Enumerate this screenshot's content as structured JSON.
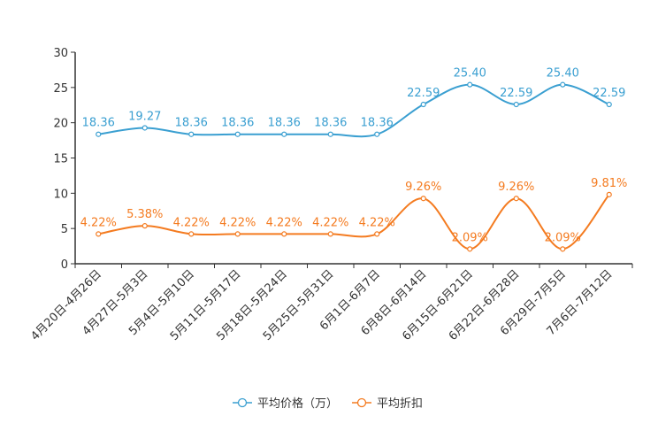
{
  "chart_data": {
    "type": "line",
    "title": "",
    "xlabel": "",
    "ylabel": "",
    "ylim": [
      0,
      30
    ],
    "yticks": [
      0,
      5,
      10,
      15,
      20,
      25,
      30
    ],
    "categories": [
      "4月20日-4月26日",
      "4月27日-5月3日",
      "5月4日-5月10日",
      "5月11日-5月17日",
      "5月18日-5月24日",
      "5月25日-5月31日",
      "6月1日-6月7日",
      "6月8日-6月14日",
      "6月15日-6月21日",
      "6月22日-6月28日",
      "6月29日-7月5日",
      "7月6日-7月12日"
    ],
    "series": [
      {
        "name": "平均价格（万）",
        "color": "#3a9fd1",
        "values": [
          18.36,
          19.27,
          18.36,
          18.36,
          18.36,
          18.36,
          18.36,
          22.59,
          25.4,
          22.59,
          25.4,
          22.59
        ],
        "labels": [
          "18.36",
          "19.27",
          "18.36",
          "18.36",
          "18.36",
          "18.36",
          "18.36",
          "22.59",
          "25.40",
          "22.59",
          "25.40",
          "22.59"
        ]
      },
      {
        "name": "平均折扣",
        "color": "#f47b20",
        "values": [
          4.22,
          5.38,
          4.22,
          4.22,
          4.22,
          4.22,
          4.22,
          9.26,
          2.09,
          9.26,
          2.09,
          9.81
        ],
        "labels": [
          "4.22%",
          "5.38%",
          "4.22%",
          "4.22%",
          "4.22%",
          "4.22%",
          "4.22%",
          "9.26%",
          "2.09%",
          "9.26%",
          "2.09%",
          "9.81%"
        ]
      }
    ],
    "legend_position": "bottom-center"
  }
}
